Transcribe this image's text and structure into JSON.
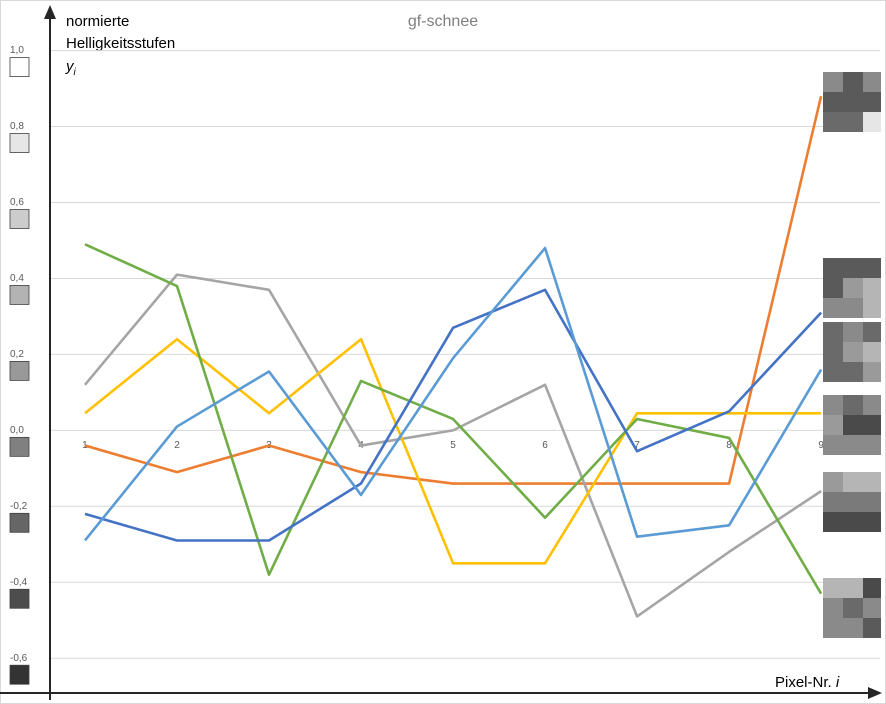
{
  "chart_data": {
    "type": "line",
    "title": "gf-schnee",
    "y_label": [
      "normierte",
      "Helligkeitsstufen"
    ],
    "y_symbol": "y",
    "y_symbol_sub": "i",
    "x_label": "Pixel-Nr.",
    "x_symbol": "i",
    "x": [
      1,
      2,
      3,
      4,
      5,
      6,
      7,
      8,
      9
    ],
    "xlim": [
      0.62,
      9.64
    ],
    "xticks": [
      1,
      2,
      3,
      4,
      5,
      6,
      7,
      8,
      9
    ],
    "ylim": [
      -0.71,
      1.12
    ],
    "yticks": [
      {
        "value": 1.0,
        "label": "1,0"
      },
      {
        "value": 0.8,
        "label": "0,8"
      },
      {
        "value": 0.6,
        "label": "0,6"
      },
      {
        "value": 0.4,
        "label": "0,4"
      },
      {
        "value": 0.2,
        "label": "0,2"
      },
      {
        "value": 0.0,
        "label": "0,0"
      },
      {
        "value": -0.2,
        "label": "-0,2"
      },
      {
        "value": -0.4,
        "label": "-0,4"
      },
      {
        "value": -0.6,
        "label": "-0,6"
      }
    ],
    "grid": true,
    "series": [
      {
        "color": "#ed7d31",
        "values": [
          -0.04,
          -0.11,
          -0.04,
          -0.11,
          -0.14,
          -0.14,
          -0.14,
          -0.14,
          0.88
        ]
      },
      {
        "color": "#a5a5a5",
        "values": [
          0.12,
          0.41,
          0.37,
          -0.04,
          0.0,
          0.12,
          -0.49,
          -0.32,
          -0.16
        ]
      },
      {
        "color": "#ffc000",
        "values": [
          0.045,
          0.24,
          0.045,
          0.24,
          -0.35,
          -0.35,
          0.045,
          0.045,
          0.045
        ]
      },
      {
        "color": "#70ad47",
        "values": [
          0.49,
          0.38,
          -0.38,
          0.13,
          0.03,
          -0.23,
          0.03,
          -0.02,
          -0.43
        ]
      },
      {
        "color": "#4472c4",
        "values": [
          -0.22,
          -0.29,
          -0.29,
          -0.14,
          0.27,
          0.37,
          -0.055,
          0.05,
          0.31
        ]
      },
      {
        "color": "#5b9bd5",
        "values": [
          -0.29,
          0.01,
          0.155,
          -0.17,
          0.19,
          0.48,
          -0.28,
          -0.25,
          0.16
        ]
      }
    ]
  }
}
